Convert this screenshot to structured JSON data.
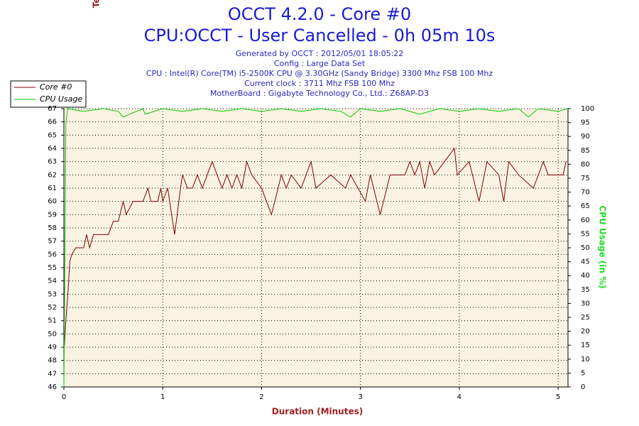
{
  "chart_data": {
    "type": "line",
    "title": "OCCT 4.2.0 - Core #0",
    "subtitle_main": "CPU:OCCT - User Cancelled - 0h 05m 10s",
    "subtitle": [
      "Generated by OCCT : 2012/05/01 18:05:22",
      "Config : Large Data Set",
      "CPU : Intel(R) Core(TM) i5-2500K CPU @ 3.30GHz (Sandy Bridge) 3300 Mhz FSB 100 Mhz",
      "Current clock : 3711 Mhz FSB 100 Mhz",
      "MotherBoard : Gigabyte Technology Co., Ltd.: Z68AP-D3"
    ],
    "xlabel": "Duration (Minutes)",
    "ylabel": "Temperature (°C)",
    "y2label": "CPU Usage (in %)",
    "xlim": [
      0,
      5.1
    ],
    "xticks": [
      0,
      1,
      2,
      3,
      4,
      5
    ],
    "ylim": [
      46,
      67
    ],
    "yticks": [
      46,
      47,
      48,
      49,
      50,
      51,
      52,
      53,
      54,
      55,
      56,
      57,
      58,
      59,
      60,
      61,
      62,
      63,
      64,
      65,
      66,
      67
    ],
    "y2lim": [
      0,
      100
    ],
    "y2ticks": [
      0,
      5,
      10,
      15,
      20,
      25,
      30,
      35,
      40,
      45,
      50,
      55,
      60,
      65,
      70,
      75,
      80,
      85,
      90,
      95,
      100
    ],
    "grid": true,
    "legend": "top-left",
    "series": [
      {
        "name": "Core #0",
        "color": "#800000",
        "x": [
          0,
          0.02,
          0.04,
          0.06,
          0.08,
          0.12,
          0.2,
          0.23,
          0.26,
          0.3,
          0.45,
          0.5,
          0.55,
          0.6,
          0.63,
          0.7,
          0.8,
          0.85,
          0.88,
          0.95,
          0.98,
          1.0,
          1.05,
          1.1,
          1.12,
          1.18,
          1.2,
          1.25,
          1.3,
          1.35,
          1.4,
          1.45,
          1.5,
          1.55,
          1.6,
          1.65,
          1.7,
          1.75,
          1.8,
          1.85,
          1.9,
          2.0,
          2.1,
          2.2,
          2.25,
          2.3,
          2.4,
          2.5,
          2.55,
          2.7,
          2.85,
          2.9,
          3.05,
          3.1,
          3.2,
          3.3,
          3.45,
          3.5,
          3.55,
          3.6,
          3.65,
          3.7,
          3.75,
          3.85,
          3.95,
          3.98,
          4.1,
          4.2,
          4.28,
          4.4,
          4.45,
          4.5,
          4.6,
          4.75,
          4.85,
          4.9,
          5.05,
          5.08
        ],
        "values": [
          48.5,
          51,
          53,
          55.5,
          56,
          56.5,
          56.5,
          57.5,
          56.5,
          57.5,
          57.5,
          58.5,
          58.5,
          60,
          59,
          60,
          60,
          61,
          60,
          60,
          61,
          60,
          61,
          58.5,
          57.5,
          61,
          62,
          61,
          61,
          62,
          61,
          62,
          63,
          62,
          61,
          62,
          61,
          62,
          61,
          63,
          62,
          61,
          59,
          62,
          61,
          62,
          61,
          63,
          61,
          62,
          61,
          62,
          60,
          62,
          59,
          62,
          62,
          63,
          62,
          63,
          61,
          63,
          62,
          63,
          64,
          62,
          63,
          60,
          63,
          62,
          60,
          63,
          62,
          61,
          63,
          62,
          62,
          63
        ]
      },
      {
        "name": "CPU Usage",
        "color": "#00cc00",
        "axis": "y2",
        "x": [
          0,
          0.02,
          0.04,
          0.2,
          0.4,
          0.55,
          0.6,
          0.8,
          0.82,
          1.0,
          1.2,
          1.4,
          1.6,
          1.8,
          2.0,
          2.2,
          2.4,
          2.6,
          2.8,
          2.9,
          3.0,
          3.2,
          3.4,
          3.6,
          3.8,
          4.0,
          4.2,
          4.4,
          4.6,
          4.7,
          4.8,
          5.0,
          5.1
        ],
        "values": [
          0,
          95,
          100,
          99,
          100,
          99,
          97,
          100,
          98,
          100,
          99,
          100,
          99,
          100,
          99,
          100,
          99,
          100,
          99,
          97,
          100,
          99,
          100,
          98,
          100,
          99,
          100,
          99,
          100,
          97,
          100,
          99,
          100
        ]
      }
    ]
  }
}
